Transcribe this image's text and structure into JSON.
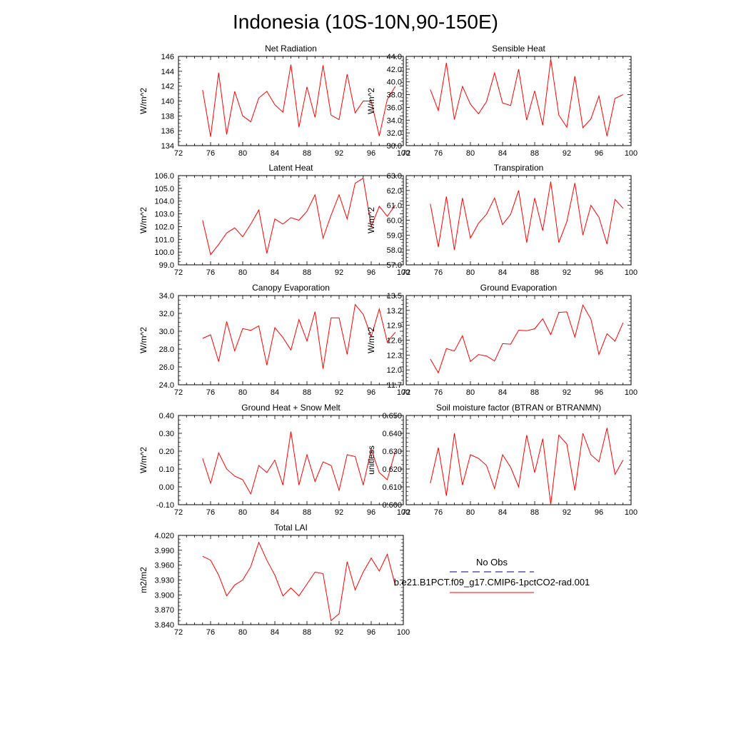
{
  "title": "Indonesia (10S-10N,90-150E)",
  "colors": {
    "model_line": "#ff0000",
    "obs_line": "#3333aa",
    "frame": "#000000"
  },
  "legend": {
    "obs_label": "No Obs",
    "model_label": "b.e21.B1PCT.f09_g17.CMIP6-1pctCO2-rad.001"
  },
  "chart_data": [
    {
      "type": "line",
      "title": "Net Radiation",
      "ylabel": "W/m^2",
      "xlim": [
        72,
        100
      ],
      "xticks": [
        "72",
        "76",
        "80",
        "84",
        "88",
        "92",
        "96",
        "100"
      ],
      "ylim": [
        134,
        146
      ],
      "yticks": [
        "134",
        "136",
        "138",
        "140",
        "142",
        "144",
        "146"
      ],
      "x": [
        75,
        76,
        77,
        78,
        79,
        80,
        81,
        82,
        83,
        84,
        85,
        86,
        87,
        88,
        89,
        90,
        91,
        92,
        93,
        94,
        95,
        96,
        97,
        98,
        99
      ],
      "series": [
        {
          "values": [
            141.5,
            135.2,
            143.8,
            135.5,
            141.3,
            138.0,
            137.2,
            140.4,
            141.3,
            139.5,
            138.5,
            144.9,
            136.5,
            141.9,
            137.8,
            144.8,
            138.1,
            137.5,
            143.6,
            138.4,
            140.0,
            140.0,
            135.3,
            140.2,
            142.0
          ]
        }
      ]
    },
    {
      "type": "line",
      "title": "Sensible Heat",
      "ylabel": "W/m^2",
      "xlim": [
        72,
        100
      ],
      "xticks": [
        "72",
        "76",
        "80",
        "84",
        "88",
        "92",
        "96",
        "100"
      ],
      "ylim": [
        30,
        44
      ],
      "yticks": [
        "30.0",
        "32.0",
        "34.0",
        "36.0",
        "38.0",
        "40.0",
        "42.0",
        "44.0"
      ],
      "x": [
        75,
        76,
        77,
        78,
        79,
        80,
        81,
        82,
        83,
        84,
        85,
        86,
        87,
        88,
        89,
        90,
        91,
        92,
        93,
        94,
        95,
        96,
        97,
        98,
        99
      ],
      "series": [
        {
          "values": [
            38.8,
            35.5,
            43.0,
            34.1,
            39.3,
            36.5,
            35.0,
            36.9,
            41.4,
            36.7,
            36.3,
            42.0,
            34.0,
            38.6,
            33.2,
            43.6,
            34.8,
            32.9,
            40.9,
            32.8,
            34.2,
            37.8,
            31.5,
            37.4,
            38.0
          ]
        }
      ]
    },
    {
      "type": "line",
      "title": "Latent Heat",
      "ylabel": "W/m^2",
      "xlim": [
        72,
        100
      ],
      "xticks": [
        "72",
        "76",
        "80",
        "84",
        "88",
        "92",
        "96",
        "100"
      ],
      "ylim": [
        99,
        106
      ],
      "yticks": [
        "99.0",
        "100.0",
        "101.0",
        "102.0",
        "103.0",
        "104.0",
        "105.0",
        "106.0"
      ],
      "x": [
        75,
        76,
        77,
        78,
        79,
        80,
        81,
        82,
        83,
        84,
        85,
        86,
        87,
        88,
        89,
        90,
        91,
        92,
        93,
        94,
        95,
        96,
        97,
        98,
        99
      ],
      "series": [
        {
          "values": [
            102.5,
            99.8,
            100.6,
            101.5,
            101.9,
            101.2,
            102.2,
            103.3,
            99.9,
            102.6,
            102.2,
            102.7,
            102.5,
            103.2,
            104.5,
            101.1,
            102.9,
            104.5,
            102.6,
            105.4,
            105.8,
            102.0,
            103.6,
            102.8,
            103.7
          ]
        }
      ]
    },
    {
      "type": "line",
      "title": "Transpiration",
      "ylabel": "W/m^2",
      "xlim": [
        72,
        100
      ],
      "xticks": [
        "72",
        "76",
        "80",
        "84",
        "88",
        "92",
        "96",
        "100"
      ],
      "ylim": [
        57,
        63
      ],
      "yticks": [
        "57.0",
        "58.0",
        "59.0",
        "60.0",
        "61.0",
        "62.0",
        "63.0"
      ],
      "x": [
        75,
        76,
        77,
        78,
        79,
        80,
        81,
        82,
        83,
        84,
        85,
        86,
        87,
        88,
        89,
        90,
        91,
        92,
        93,
        94,
        95,
        96,
        97,
        98,
        99
      ],
      "series": [
        {
          "values": [
            61.1,
            58.2,
            61.6,
            58.0,
            61.5,
            58.8,
            59.8,
            60.4,
            61.5,
            59.7,
            60.4,
            62.0,
            58.5,
            61.5,
            59.3,
            62.6,
            58.5,
            59.9,
            62.5,
            59.0,
            61.0,
            60.2,
            58.4,
            61.4,
            60.8
          ]
        }
      ]
    },
    {
      "type": "line",
      "title": "Canopy Evaporation",
      "ylabel": "W/m^2",
      "xlim": [
        72,
        100
      ],
      "xticks": [
        "72",
        "76",
        "80",
        "84",
        "88",
        "92",
        "96",
        "100"
      ],
      "ylim": [
        24,
        34
      ],
      "yticks": [
        "24.0",
        "26.0",
        "28.0",
        "30.0",
        "32.0",
        "34.0"
      ],
      "x": [
        75,
        76,
        77,
        78,
        79,
        80,
        81,
        82,
        83,
        84,
        85,
        86,
        87,
        88,
        89,
        90,
        91,
        92,
        93,
        94,
        95,
        96,
        97,
        98,
        99
      ],
      "series": [
        {
          "values": [
            29.2,
            29.6,
            26.6,
            31.1,
            27.8,
            30.3,
            30.1,
            30.6,
            26.2,
            30.4,
            29.3,
            27.9,
            31.3,
            28.9,
            32.2,
            25.8,
            31.5,
            31.5,
            27.4,
            33.0,
            31.9,
            29.4,
            32.5,
            28.8,
            29.9
          ]
        }
      ]
    },
    {
      "type": "line",
      "title": "Ground Evaporation",
      "ylabel": "W/m^2",
      "xlim": [
        72,
        100
      ],
      "xticks": [
        "72",
        "76",
        "80",
        "84",
        "88",
        "92",
        "96",
        "100"
      ],
      "ylim": [
        11.7,
        13.5
      ],
      "yticks": [
        "11.7",
        "12.0",
        "12.3",
        "12.6",
        "12.9",
        "13.2",
        "13.5"
      ],
      "x": [
        75,
        76,
        77,
        78,
        79,
        80,
        81,
        82,
        83,
        84,
        85,
        86,
        87,
        88,
        89,
        90,
        91,
        92,
        93,
        94,
        95,
        96,
        97,
        98,
        99
      ],
      "series": [
        {
          "values": [
            12.22,
            11.94,
            12.43,
            12.38,
            12.69,
            12.17,
            12.31,
            12.28,
            12.18,
            12.53,
            12.52,
            12.8,
            12.79,
            12.83,
            13.03,
            12.71,
            13.16,
            13.17,
            12.66,
            13.31,
            13.02,
            12.31,
            12.73,
            12.58,
            12.95
          ]
        }
      ]
    },
    {
      "type": "line",
      "title": "Ground Heat + Snow Melt",
      "ylabel": "W/m^2",
      "xlim": [
        72,
        100
      ],
      "xticks": [
        "72",
        "76",
        "80",
        "84",
        "88",
        "92",
        "96",
        "100"
      ],
      "ylim": [
        -0.1,
        0.4
      ],
      "yticks": [
        "-0.10",
        "0.00",
        "0.10",
        "0.20",
        "0.30",
        "0.40"
      ],
      "x": [
        75,
        76,
        77,
        78,
        79,
        80,
        81,
        82,
        83,
        84,
        85,
        86,
        87,
        88,
        89,
        90,
        91,
        92,
        93,
        94,
        95,
        96,
        97,
        98,
        99
      ],
      "series": [
        {
          "values": [
            0.16,
            0.02,
            0.19,
            0.1,
            0.06,
            0.04,
            -0.04,
            0.12,
            0.08,
            0.15,
            0.01,
            0.31,
            0.01,
            0.18,
            0.03,
            0.14,
            0.12,
            -0.02,
            0.18,
            0.17,
            0.01,
            0.21,
            0.08,
            0.04,
            0.2
          ]
        }
      ]
    },
    {
      "type": "line",
      "title": "Soil moisture factor (BTRAN or BTRANMN)",
      "ylabel": "unitless",
      "xlim": [
        72,
        100
      ],
      "xticks": [
        "72",
        "76",
        "80",
        "84",
        "88",
        "92",
        "96",
        "100"
      ],
      "ylim": [
        0.6,
        0.65
      ],
      "yticks": [
        "0.600",
        "0.610",
        "0.620",
        "0.630",
        "0.640",
        "0.650"
      ],
      "x": [
        75,
        76,
        77,
        78,
        79,
        80,
        81,
        82,
        83,
        84,
        85,
        86,
        87,
        88,
        89,
        90,
        91,
        92,
        93,
        94,
        95,
        96,
        97,
        98,
        99
      ],
      "series": [
        {
          "values": [
            0.612,
            0.632,
            0.605,
            0.64,
            0.611,
            0.628,
            0.626,
            0.622,
            0.609,
            0.628,
            0.621,
            0.61,
            0.639,
            0.618,
            0.637,
            0.6,
            0.639,
            0.634,
            0.608,
            0.64,
            0.628,
            0.624,
            0.643,
            0.617,
            0.625
          ]
        }
      ]
    },
    {
      "type": "line",
      "title": "Total LAI",
      "ylabel": "m2/m2",
      "xlim": [
        72,
        100
      ],
      "xticks": [
        "72",
        "76",
        "80",
        "84",
        "88",
        "92",
        "96",
        "100"
      ],
      "ylim": [
        3.84,
        4.02
      ],
      "yticks": [
        "3.840",
        "3.870",
        "3.900",
        "3.930",
        "3.960",
        "3.990",
        "4.020"
      ],
      "x": [
        75,
        76,
        77,
        78,
        79,
        80,
        81,
        82,
        83,
        84,
        85,
        86,
        87,
        88,
        89,
        90,
        91,
        92,
        93,
        94,
        95,
        96,
        97,
        98,
        99
      ],
      "series": [
        {
          "values": [
            3.978,
            3.97,
            3.94,
            3.898,
            3.92,
            3.93,
            3.957,
            4.006,
            3.97,
            3.94,
            3.898,
            3.914,
            3.898,
            3.922,
            3.946,
            3.943,
            3.848,
            3.862,
            3.967,
            3.91,
            3.946,
            3.974,
            3.948,
            3.982,
            3.918
          ]
        }
      ]
    }
  ]
}
